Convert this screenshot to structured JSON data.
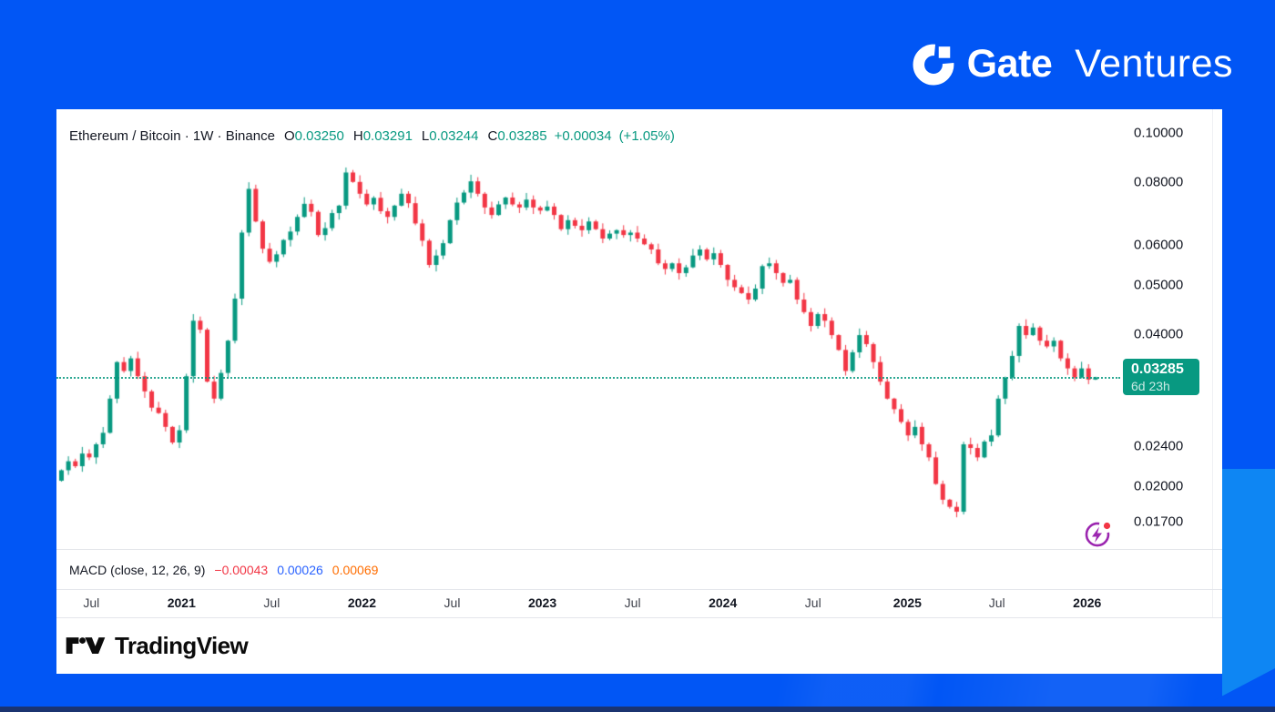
{
  "branding": {
    "gate": "Gate",
    "ventures": "Ventures"
  },
  "header": {
    "title": "Ethereum / Bitcoin · 1W · Binance",
    "o_label": "O",
    "h_label": "H",
    "l_label": "L",
    "c_label": "C",
    "open": "0.03250",
    "high": "0.03291",
    "low": "0.03244",
    "close": "0.03285",
    "change": "+0.00034",
    "change_pct": "(+1.05%)"
  },
  "price_badge": {
    "price": "0.03285",
    "countdown": "6d 23h",
    "color": "#089981"
  },
  "macd": {
    "label": "MACD (close, 12, 26, 9)",
    "values": [
      {
        "text": "−0.00043",
        "color": "#F23645"
      },
      {
        "text": "0.00026",
        "color": "#2962FF"
      },
      {
        "text": "0.00069",
        "color": "#FF6D00"
      }
    ]
  },
  "footer": {
    "brand": "TradingView"
  },
  "chart_data": {
    "type": "candlestick",
    "title": "Ethereum / Bitcoin",
    "interval": "1W",
    "exchange": "Binance",
    "scale": "log",
    "grid": false,
    "legend_position": "none",
    "up_color": "#089981",
    "down_color": "#F23645",
    "price_line": 0.03285,
    "last_candle": {
      "o": 0.0325,
      "h": 0.03291,
      "l": 0.03244,
      "c": 0.03285
    },
    "first_open": 0.0205,
    "y_ticks": [
      {
        "label": "0.10000",
        "price": 0.1
      },
      {
        "label": "0.08000",
        "price": 0.08
      },
      {
        "label": "0.06000",
        "price": 0.06
      },
      {
        "label": "0.05000",
        "price": 0.05
      },
      {
        "label": "0.04000",
        "price": 0.04
      },
      {
        "label": "0.02400",
        "price": 0.024
      },
      {
        "label": "0.02000",
        "price": 0.02
      },
      {
        "label": "0.01700",
        "price": 0.017
      }
    ],
    "x_ticks": [
      {
        "label": "Jul",
        "index": 4.3,
        "major": false
      },
      {
        "label": "2021",
        "index": 17.3,
        "major": true
      },
      {
        "label": "Jul",
        "index": 30.3,
        "major": false
      },
      {
        "label": "2022",
        "index": 43.3,
        "major": true
      },
      {
        "label": "Jul",
        "index": 56.3,
        "major": false
      },
      {
        "label": "2023",
        "index": 69.3,
        "major": true
      },
      {
        "label": "Jul",
        "index": 82.3,
        "major": false
      },
      {
        "label": "2024",
        "index": 95.3,
        "major": true
      },
      {
        "label": "Jul",
        "index": 108.3,
        "major": false
      },
      {
        "label": "2025",
        "index": 121.9,
        "major": true
      },
      {
        "label": "Jul",
        "index": 134.8,
        "major": false
      },
      {
        "label": "2026",
        "index": 147.8,
        "major": true
      }
    ],
    "closes": [
      0.0215,
      0.0224,
      0.0219,
      0.0232,
      0.0228,
      0.0242,
      0.0255,
      0.0298,
      0.0352,
      0.0338,
      0.0358,
      0.033,
      0.0308,
      0.0286,
      0.0279,
      0.0262,
      0.0244,
      0.0258,
      0.033,
      0.0425,
      0.0408,
      0.0322,
      0.0298,
      0.0335,
      0.0388,
      0.047,
      0.0635,
      0.0775,
      0.0668,
      0.059,
      0.0556,
      0.0575,
      0.0614,
      0.0638,
      0.0682,
      0.0724,
      0.0698,
      0.0628,
      0.0648,
      0.0694,
      0.0718,
      0.0835,
      0.08,
      0.0758,
      0.0722,
      0.0744,
      0.07,
      0.0682,
      0.0718,
      0.0758,
      0.0726,
      0.0662,
      0.0612,
      0.0548,
      0.0572,
      0.0605,
      0.0672,
      0.0728,
      0.0762,
      0.0802,
      0.0758,
      0.0712,
      0.0688,
      0.0722,
      0.0745,
      0.0722,
      0.0712,
      0.0738,
      0.0712,
      0.0702,
      0.0715,
      0.0688,
      0.0645,
      0.0672,
      0.0655,
      0.0642,
      0.0668,
      0.0645,
      0.0618,
      0.0632,
      0.0642,
      0.0628,
      0.0635,
      0.0618,
      0.0602,
      0.0588,
      0.0552,
      0.0538,
      0.0552,
      0.0528,
      0.0542,
      0.0572,
      0.0588,
      0.0562,
      0.0578,
      0.0548,
      0.0512,
      0.0495,
      0.0482,
      0.0468,
      0.0492,
      0.0545,
      0.0552,
      0.0528,
      0.0505,
      0.0512,
      0.0468,
      0.0442,
      0.0415,
      0.0438,
      0.0425,
      0.0398,
      0.0372,
      0.0338,
      0.0368,
      0.0398,
      0.0382,
      0.0352,
      0.0322,
      0.0298,
      0.0284,
      0.0268,
      0.0252,
      0.0262,
      0.0242,
      0.0228,
      0.0202,
      0.0188,
      0.0182,
      0.0178,
      0.0242,
      0.0238,
      0.0228,
      0.0245,
      0.0252,
      0.0298,
      0.0328,
      0.0362,
      0.0415,
      0.0398,
      0.0412,
      0.0388,
      0.0378,
      0.0388,
      0.0358,
      0.0342,
      0.0328,
      0.0342,
      0.0325,
      0.03285
    ]
  }
}
